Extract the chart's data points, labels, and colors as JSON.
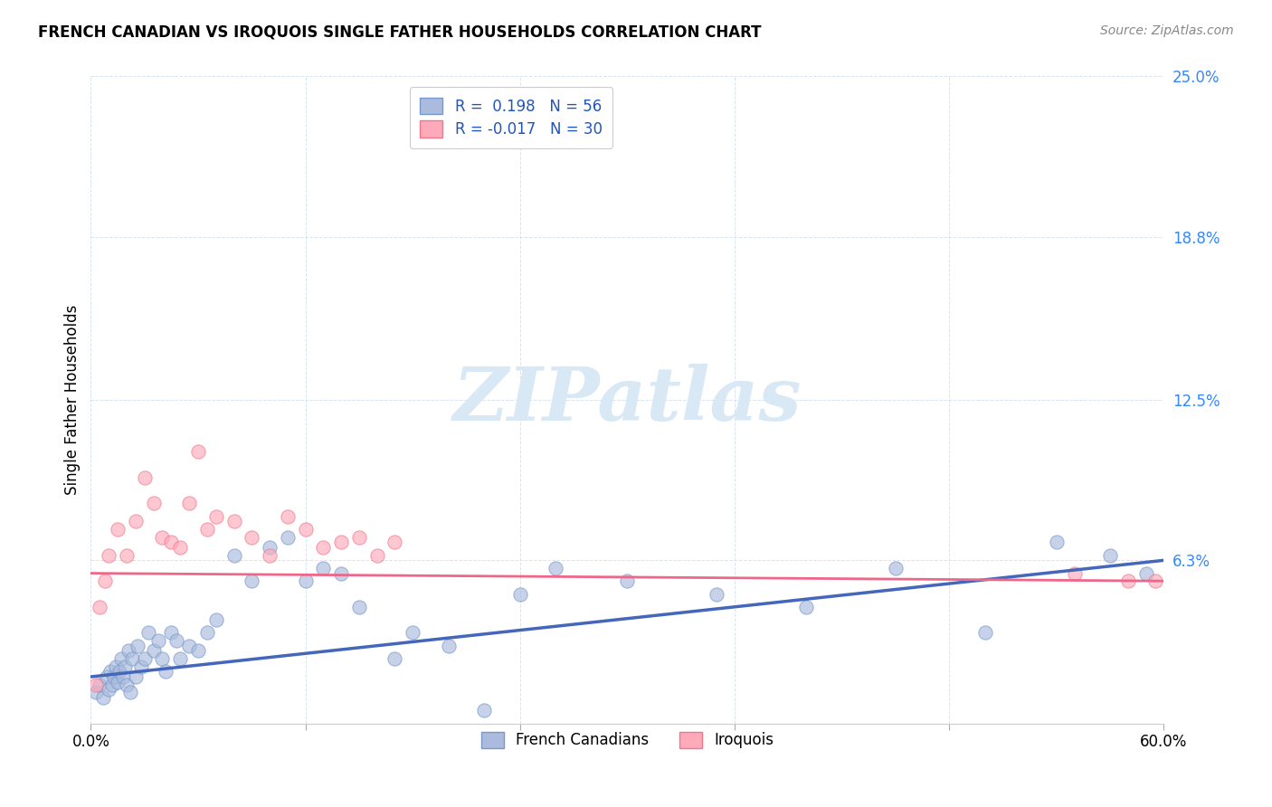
{
  "title": "FRENCH CANADIAN VS IROQUOIS SINGLE FATHER HOUSEHOLDS CORRELATION CHART",
  "source": "Source: ZipAtlas.com",
  "ylabel": "Single Father Households",
  "xlim": [
    0.0,
    60.0
  ],
  "ylim": [
    0.0,
    25.0
  ],
  "yticks": [
    0.0,
    6.3,
    12.5,
    18.8,
    25.0
  ],
  "ytick_labels": [
    "",
    "6.3%",
    "12.5%",
    "18.8%",
    "25.0%"
  ],
  "xticks": [
    0.0,
    12.0,
    24.0,
    36.0,
    48.0,
    60.0
  ],
  "blue_color": "#AABBDD",
  "blue_edge_color": "#7799CC",
  "pink_color": "#FFAABB",
  "pink_edge_color": "#EE7788",
  "trend_blue": "#4466BB",
  "trend_pink": "#EE6688",
  "watermark_color": "#D8E8F5",
  "french_scatter_x": [
    0.3,
    0.5,
    0.7,
    0.9,
    1.0,
    1.1,
    1.2,
    1.3,
    1.4,
    1.5,
    1.6,
    1.7,
    1.8,
    1.9,
    2.0,
    2.1,
    2.2,
    2.3,
    2.5,
    2.6,
    2.8,
    3.0,
    3.2,
    3.5,
    3.8,
    4.0,
    4.2,
    4.5,
    4.8,
    5.0,
    5.5,
    6.0,
    6.5,
    7.0,
    8.0,
    9.0,
    10.0,
    11.0,
    12.0,
    13.0,
    14.0,
    15.0,
    17.0,
    18.0,
    20.0,
    22.0,
    24.0,
    26.0,
    30.0,
    35.0,
    40.0,
    45.0,
    50.0,
    54.0,
    57.0,
    59.0
  ],
  "french_scatter_y": [
    1.2,
    1.5,
    1.0,
    1.8,
    1.3,
    2.0,
    1.5,
    1.8,
    2.2,
    1.6,
    2.0,
    2.5,
    1.8,
    2.2,
    1.5,
    2.8,
    1.2,
    2.5,
    1.8,
    3.0,
    2.2,
    2.5,
    3.5,
    2.8,
    3.2,
    2.5,
    2.0,
    3.5,
    3.2,
    2.5,
    3.0,
    2.8,
    3.5,
    4.0,
    6.5,
    5.5,
    6.8,
    7.2,
    5.5,
    6.0,
    5.8,
    4.5,
    2.5,
    3.5,
    3.0,
    0.5,
    5.0,
    6.0,
    5.5,
    5.0,
    4.5,
    6.0,
    3.5,
    7.0,
    6.5,
    5.8
  ],
  "iroquois_scatter_x": [
    0.3,
    0.5,
    0.8,
    1.0,
    1.5,
    2.0,
    2.5,
    3.0,
    3.5,
    4.0,
    4.5,
    5.0,
    5.5,
    6.0,
    6.5,
    7.0,
    8.0,
    9.0,
    10.0,
    11.0,
    12.0,
    13.0,
    14.0,
    15.0,
    16.0,
    17.0,
    55.0,
    58.0,
    59.5
  ],
  "iroquois_scatter_y": [
    1.5,
    4.5,
    5.5,
    6.5,
    7.5,
    6.5,
    7.8,
    9.5,
    8.5,
    7.2,
    7.0,
    6.8,
    8.5,
    10.5,
    7.5,
    8.0,
    7.8,
    7.2,
    6.5,
    8.0,
    7.5,
    6.8,
    7.0,
    7.2,
    6.5,
    7.0,
    5.8,
    5.5,
    5.5
  ],
  "blue_trend_x": [
    0.0,
    60.0
  ],
  "blue_trend_y": [
    1.8,
    6.3
  ],
  "pink_trend_x": [
    0.0,
    60.0
  ],
  "pink_trend_y": [
    5.8,
    5.5
  ],
  "figsize": [
    14.06,
    8.92
  ],
  "dpi": 100
}
